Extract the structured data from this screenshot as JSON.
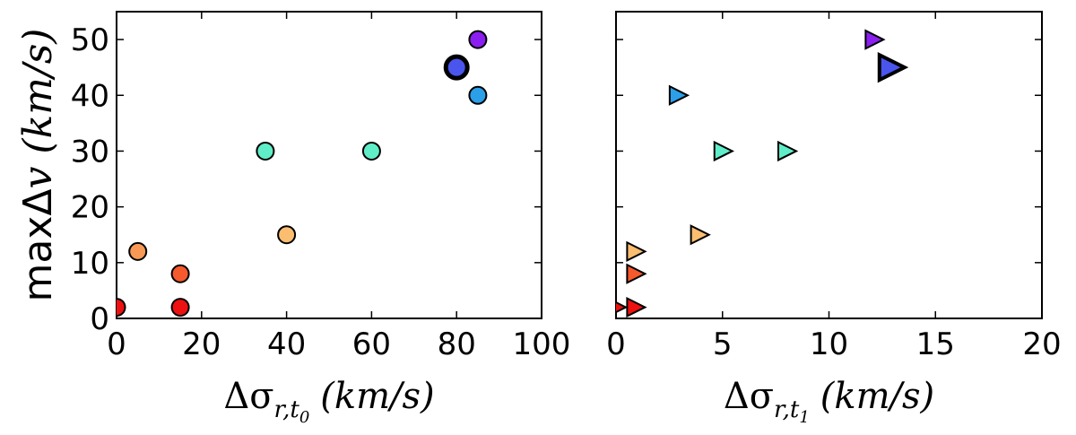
{
  "chart_data": [
    {
      "type": "scatter",
      "marker": "circle",
      "xlabel": "Δσ_{r,t₀} (km/s)",
      "ylabel": "maxΔv (km/s)",
      "xlim": [
        0,
        100
      ],
      "ylim": [
        0,
        55
      ],
      "xticks": [
        "0",
        "20",
        "40",
        "60",
        "80",
        "100"
      ],
      "yticks": [
        "0",
        "10",
        "20",
        "30",
        "40",
        "50"
      ],
      "points": [
        {
          "x": 0,
          "y": 2,
          "color": "#ee1111",
          "size": "normal"
        },
        {
          "x": 15,
          "y": 2,
          "color": "#ee1111",
          "size": "normal"
        },
        {
          "x": 15,
          "y": 8,
          "color": "#f55a2e",
          "size": "normal"
        },
        {
          "x": 5,
          "y": 12,
          "color": "#f89a55",
          "size": "normal"
        },
        {
          "x": 40,
          "y": 15,
          "color": "#fbbd70",
          "size": "normal"
        },
        {
          "x": 35,
          "y": 30,
          "color": "#60eec8",
          "size": "normal"
        },
        {
          "x": 60,
          "y": 30,
          "color": "#60eec8",
          "size": "normal"
        },
        {
          "x": 85,
          "y": 40,
          "color": "#2b9fe8",
          "size": "normal"
        },
        {
          "x": 80,
          "y": 45,
          "color": "#4a55ee",
          "size": "large"
        },
        {
          "x": 85,
          "y": 50,
          "color": "#8a1ff0",
          "size": "normal"
        }
      ]
    },
    {
      "type": "scatter",
      "marker": "triangle-right",
      "xlabel": "Δσ_{r,t₁} (km/s)",
      "ylabel": "",
      "xlim": [
        0,
        20
      ],
      "ylim": [
        0,
        55
      ],
      "xticks": [
        "0",
        "5",
        "10",
        "15",
        "20"
      ],
      "yticks": [],
      "points": [
        {
          "x": 0,
          "y": 2,
          "color": "#ee1111",
          "size": "normal"
        },
        {
          "x": 0.9,
          "y": 2,
          "color": "#ee1111",
          "size": "normal"
        },
        {
          "x": 0.9,
          "y": 8,
          "color": "#f55a2e",
          "size": "normal"
        },
        {
          "x": 0.9,
          "y": 12,
          "color": "#fbbd70",
          "size": "normal"
        },
        {
          "x": 3.9,
          "y": 15,
          "color": "#fbbd70",
          "size": "normal"
        },
        {
          "x": 5.0,
          "y": 30,
          "color": "#60eec8",
          "size": "normal"
        },
        {
          "x": 8.0,
          "y": 30,
          "color": "#60eec8",
          "size": "normal"
        },
        {
          "x": 2.9,
          "y": 40,
          "color": "#2b9fe8",
          "size": "normal"
        },
        {
          "x": 12.9,
          "y": 45,
          "color": "#4a55ee",
          "size": "large"
        },
        {
          "x": 12.1,
          "y": 50,
          "color": "#8a1ff0",
          "size": "normal"
        }
      ]
    }
  ]
}
